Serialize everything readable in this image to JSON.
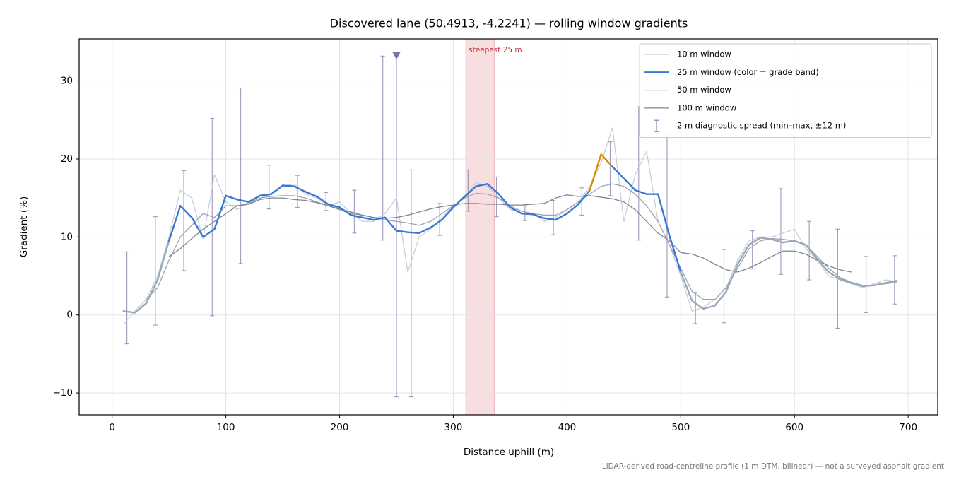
{
  "chart_data": {
    "type": "line",
    "title": "Discovered lane (50.4913, -4.2241) — rolling window gradients",
    "x_label": "Distance uphill (m)",
    "y_label": "Gradient (%)",
    "footnote": "LiDAR-derived road-centreline profile (1 m DTM, bilinear) — not a surveyed asphalt gradient",
    "xlim": [
      -29,
      726
    ],
    "ylim": [
      -12.8,
      35.4
    ],
    "xticks": [
      0,
      100,
      200,
      300,
      400,
      500,
      600,
      700
    ],
    "yticks": [
      {
        "value": -10,
        "label": "−10"
      },
      0,
      10,
      20,
      30
    ],
    "grid": true,
    "legend": "upper right",
    "x": [
      10,
      20,
      30,
      40,
      50,
      60,
      70,
      80,
      90,
      100,
      110,
      120,
      130,
      140,
      150,
      160,
      170,
      180,
      190,
      200,
      210,
      220,
      230,
      240,
      250,
      260,
      270,
      280,
      290,
      300,
      310,
      320,
      330,
      340,
      350,
      360,
      370,
      380,
      390,
      400,
      410,
      420,
      430,
      440,
      450,
      460,
      470,
      480,
      490,
      500,
      510,
      520,
      530,
      540,
      550,
      560,
      570,
      580,
      590,
      600,
      610,
      620,
      630,
      640,
      650,
      660,
      670,
      680,
      690
    ],
    "series": [
      {
        "name": "10 m window",
        "color": "#c5ccd6",
        "width": 1.2,
        "values": [
          -1.2,
          0.5,
          2,
          5,
          10,
          16,
          15,
          9.8,
          18,
          14.5,
          13.5,
          14.5,
          15,
          15.5,
          16.5,
          16.8,
          15.5,
          15,
          14,
          14.5,
          13,
          12,
          12,
          13,
          15,
          5.5,
          10,
          11,
          12.5,
          14,
          15,
          17,
          16.5,
          15,
          13.5,
          13.3,
          13,
          12,
          12.5,
          13.5,
          14.5,
          16.5,
          19.5,
          24,
          12,
          18,
          21,
          12,
          9,
          5,
          0.5,
          1,
          2,
          3.5,
          7,
          9.5,
          10,
          10,
          10.5,
          11,
          8.5,
          7,
          5,
          4.5,
          4,
          3.5,
          4,
          4.5,
          4.3
        ]
      },
      {
        "name": "25 m window (color = grade band)",
        "color": "#3a78d4",
        "width": 2.4,
        "grade_bands": {
          "thresholds": [
            10,
            20
          ],
          "colors": [
            "#9aa8b8",
            "#3a78d4",
            "#e08a00"
          ]
        },
        "values": [
          0.5,
          0.3,
          1.5,
          4.5,
          9.5,
          14,
          12.5,
          10,
          11,
          15.3,
          14.8,
          14.5,
          15.3,
          15.5,
          16.6,
          16.5,
          15.8,
          15.2,
          14.2,
          13.8,
          12.8,
          12.5,
          12.2,
          12.5,
          10.8,
          10.6,
          10.5,
          11.2,
          12.2,
          13.8,
          15.2,
          16.5,
          16.8,
          15.5,
          13.8,
          13,
          12.9,
          12.4,
          12.2,
          13,
          14.2,
          16,
          20.6,
          19,
          17.5,
          16,
          15.5,
          15.5,
          10.2,
          5.5,
          1.8,
          0.8,
          1.2,
          3,
          6.5,
          9,
          9.9,
          9.7,
          9.3,
          9.5,
          9,
          7.2,
          5.5,
          4.6,
          4.1,
          3.7,
          3.8,
          4.1,
          4.4
        ]
      },
      {
        "name": "50 m window",
        "color": "#9aa5b5",
        "width": 1.3,
        "values": [
          null,
          null,
          2,
          3.5,
          7,
          10,
          11.5,
          13,
          12.5,
          14,
          14,
          14.3,
          15,
          15.2,
          15.3,
          15.3,
          15,
          14.5,
          14,
          13.5,
          13,
          12.8,
          12.5,
          12.2,
          12,
          11.8,
          11.5,
          12,
          13,
          14,
          15,
          15.6,
          15.5,
          15,
          14,
          13.3,
          13,
          12.8,
          12.8,
          13.5,
          14.5,
          15.5,
          16.5,
          16.8,
          16.5,
          15.5,
          14,
          12,
          9,
          6,
          3,
          2,
          2,
          3.5,
          6,
          8.5,
          9.5,
          9.8,
          9.7,
          9.5,
          9,
          7.5,
          6,
          4.8,
          4.2,
          3.8,
          3.8,
          4,
          4.2
        ]
      },
      {
        "name": "100 m window",
        "color": "#7f8590",
        "width": 1.3,
        "values": [
          null,
          null,
          null,
          null,
          7.5,
          8.5,
          9.8,
          11,
          12,
          13,
          14,
          14.2,
          14.8,
          15,
          15,
          14.8,
          14.7,
          14.4,
          14,
          13.6,
          13.2,
          12.8,
          12.5,
          12.4,
          12.5,
          12.8,
          13.2,
          13.6,
          13.9,
          14.1,
          14.3,
          14.3,
          14.2,
          14.2,
          14.1,
          14.1,
          14.2,
          14.3,
          15,
          15.4,
          15.2,
          15.3,
          15.1,
          14.9,
          14.5,
          13.5,
          12,
          10.5,
          9.5,
          8,
          7.8,
          7.3,
          6.5,
          5.8,
          5.5,
          6,
          6.7,
          7.5,
          8.2,
          8.2,
          7.8,
          7,
          6.3,
          5.8,
          5.5,
          null,
          null,
          null,
          null
        ]
      }
    ],
    "error_bars": {
      "name": "2 m diagnostic spread (min–max, ±12 m)",
      "color": "#8a7fae",
      "x": [
        13,
        38,
        63,
        88,
        113,
        138,
        163,
        188,
        213,
        238,
        250,
        263,
        288,
        313,
        338,
        363,
        388,
        413,
        438,
        463,
        488,
        513,
        538,
        563,
        588,
        613,
        638,
        663,
        688
      ],
      "low": [
        -3.7,
        -1.3,
        5.7,
        -0.1,
        6.6,
        13.6,
        13.8,
        13.4,
        10.5,
        9.6,
        -10.5,
        -10.5,
        10.2,
        13.3,
        12.6,
        12.1,
        10.3,
        12.8,
        15.3,
        9.6,
        2.3,
        -1.1,
        -1,
        5.9,
        5.2,
        4.5,
        -1.7,
        0.3,
        1.4
      ],
      "high": [
        8.1,
        12.6,
        18.5,
        25.2,
        29.1,
        19.2,
        17.9,
        15.7,
        16,
        33.2,
        33.3,
        18.6,
        14.3,
        18.6,
        17.7,
        14,
        14.7,
        16.3,
        22.2,
        26.7,
        23.2,
        2.9,
        8.4,
        10.8,
        16.2,
        12,
        11,
        7.5,
        7.6
      ]
    },
    "markers": [
      {
        "x": 250,
        "y": 33.3,
        "color": "#8070a0"
      }
    ],
    "span": {
      "label": "steepest 25 m",
      "start": 311,
      "end": 336,
      "color": "#e8a0a8"
    }
  }
}
